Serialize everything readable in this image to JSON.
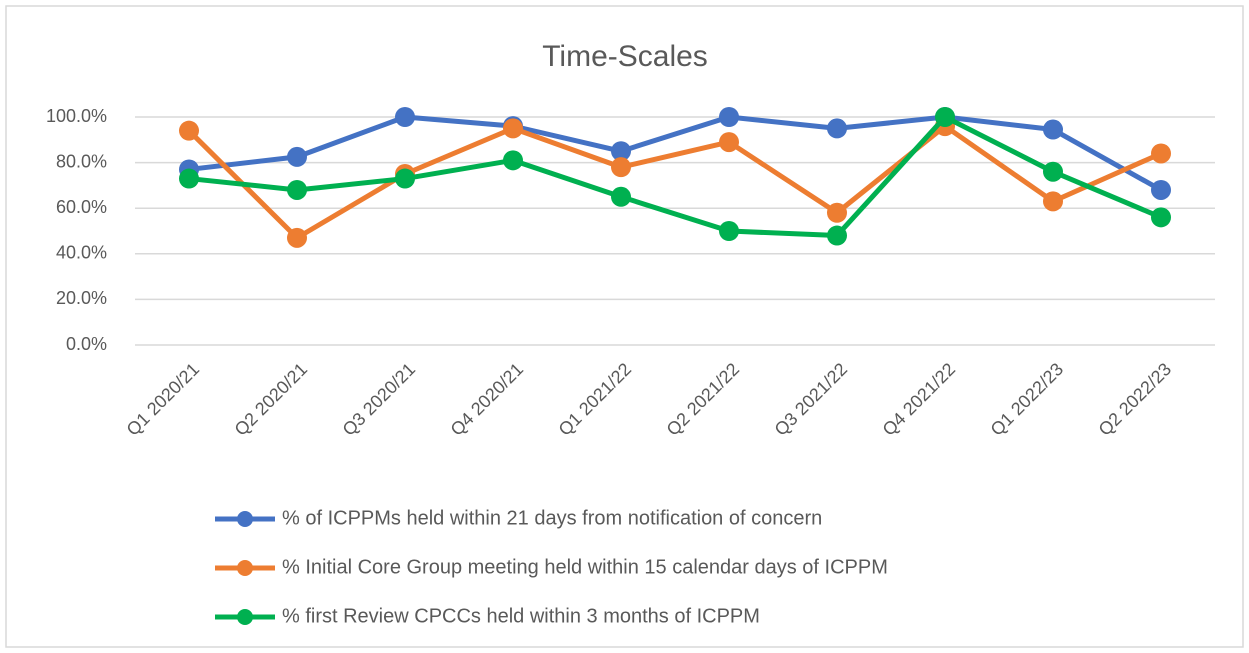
{
  "chart_data": {
    "type": "line",
    "title": "Time-Scales",
    "categories": [
      "Q1 2020/21",
      "Q2 2020/21",
      "Q3 2020/21",
      "Q4 2020/21",
      "Q1 2021/22",
      "Q2 2021/22",
      "Q3 2021/22",
      "Q4 2021/22",
      "Q1 2022/23",
      "Q2 2022/23"
    ],
    "series": [
      {
        "name": "% of ICPPMs held within 21 days from notification of concern",
        "color": "#4472c4",
        "values": [
          77,
          82.5,
          100,
          96,
          85,
          100,
          95,
          100,
          94.5,
          68
        ]
      },
      {
        "name": "% Initial Core Group meeting held within 15 calendar days of ICPPM",
        "color": "#ed7d31",
        "values": [
          94,
          47,
          75,
          95,
          78,
          89,
          58,
          96,
          63,
          84
        ]
      },
      {
        "name": "% first Review CPCCs held within 3 months of ICPPM",
        "color": "#00b050",
        "values": [
          73,
          68,
          73,
          81,
          65,
          50,
          48,
          100,
          76,
          56
        ]
      }
    ],
    "ylim": [
      0,
      100
    ],
    "yticks": [
      {
        "value": 0,
        "label": "0.0%"
      },
      {
        "value": 20,
        "label": "20.0%"
      },
      {
        "value": 40,
        "label": "40.0%"
      },
      {
        "value": 60,
        "label": "60.0%"
      },
      {
        "value": 80,
        "label": "80.0%"
      },
      {
        "value": 100,
        "label": "100.0%"
      }
    ],
    "grid": true,
    "legend": "bottom"
  }
}
